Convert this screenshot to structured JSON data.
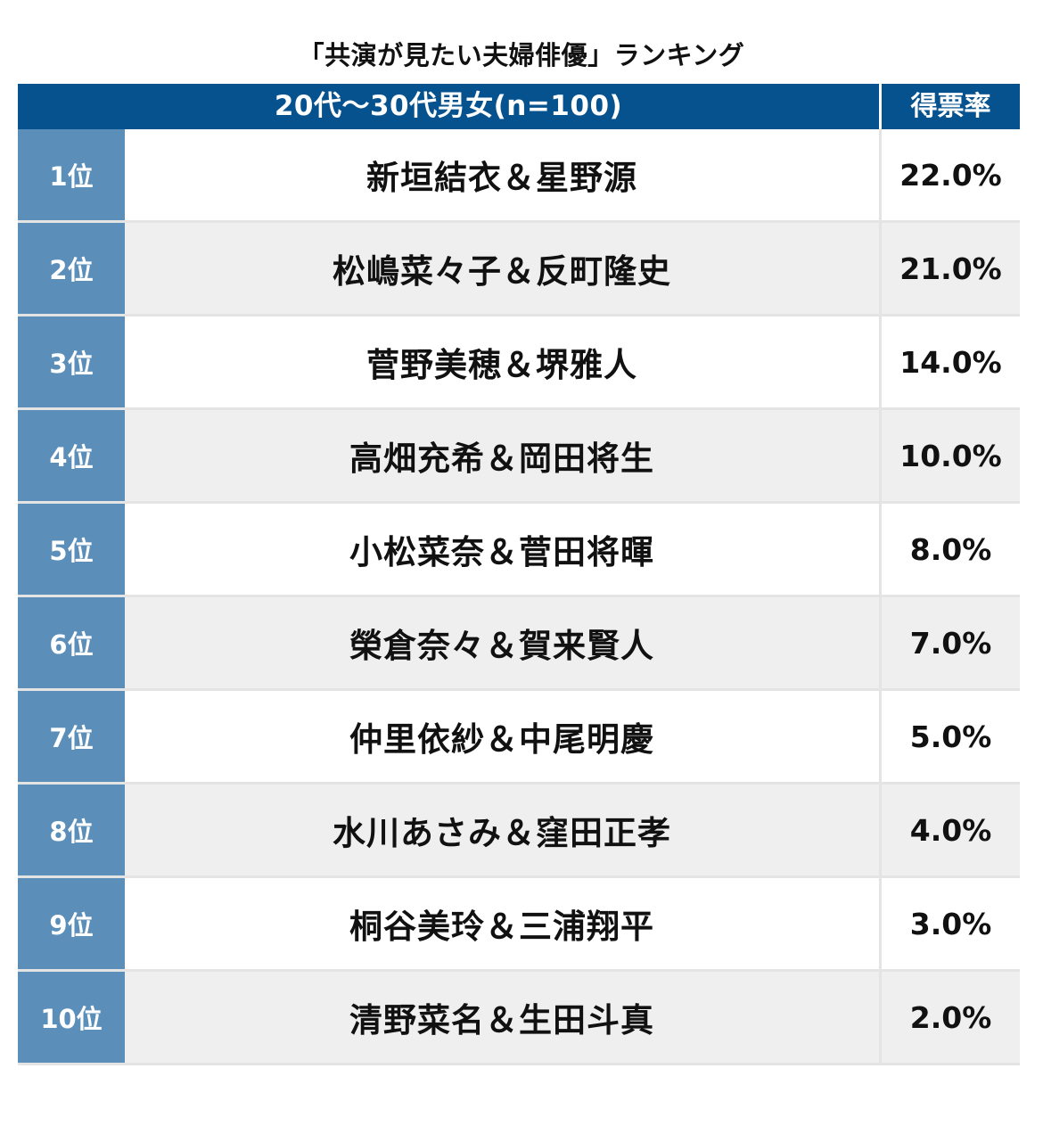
{
  "title": "「共演が見たい夫婦俳優」ランキング",
  "table": {
    "header": {
      "group_label": "20代〜30代男女(n=100)",
      "rate_label": "得票率"
    },
    "rows": [
      {
        "rank": "1位",
        "name": "新垣結衣＆星野源",
        "rate": "22.0%"
      },
      {
        "rank": "2位",
        "name": "松嶋菜々子＆反町隆史",
        "rate": "21.0%"
      },
      {
        "rank": "3位",
        "name": "菅野美穂＆堺雅人",
        "rate": "14.0%"
      },
      {
        "rank": "4位",
        "name": "高畑充希＆岡田将生",
        "rate": "10.0%"
      },
      {
        "rank": "5位",
        "name": "小松菜奈＆菅田将暉",
        "rate": "8.0%"
      },
      {
        "rank": "6位",
        "name": "榮倉奈々＆賀来賢人",
        "rate": "7.0%"
      },
      {
        "rank": "7位",
        "name": "仲里依紗＆中尾明慶",
        "rate": "5.0%"
      },
      {
        "rank": "8位",
        "name": "水川あさみ＆窪田正孝",
        "rate": "4.0%"
      },
      {
        "rank": "9位",
        "name": "桐谷美玲＆三浦翔平",
        "rate": "3.0%"
      },
      {
        "rank": "10位",
        "name": "清野菜名＆生田斗真",
        "rate": "2.0%"
      }
    ]
  },
  "colors": {
    "header_bg": "#06528f",
    "rank_bg": "#5b8fba",
    "alt_row_bg": "#efefef"
  }
}
